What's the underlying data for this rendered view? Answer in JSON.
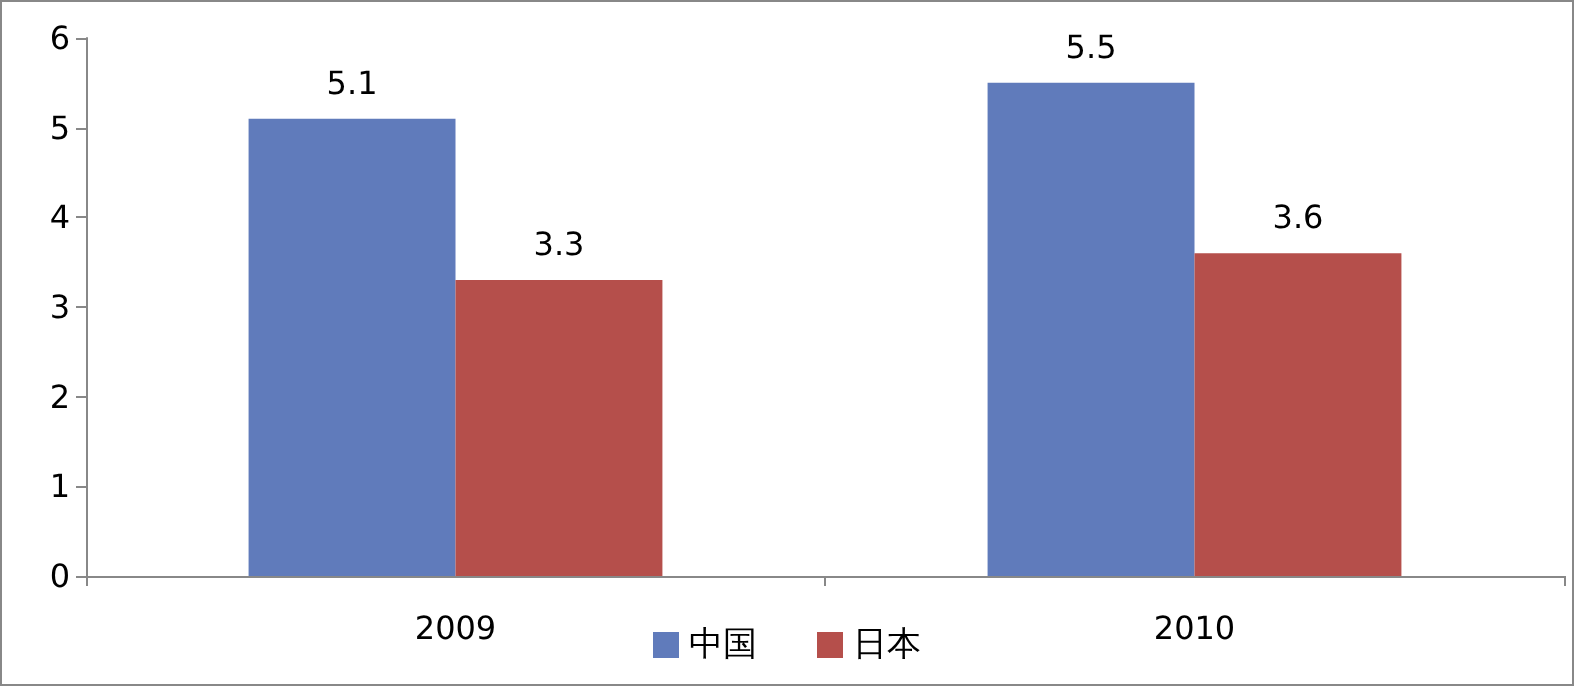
{
  "chart_data": {
    "type": "bar",
    "categories": [
      "2009",
      "2010"
    ],
    "series": [
      {
        "name": "中国",
        "color": "#607bbb",
        "values": [
          5.1,
          5.5
        ]
      },
      {
        "name": "日本",
        "color": "#b54f4b",
        "values": [
          3.3,
          3.6
        ]
      }
    ],
    "ylim": [
      0,
      6
    ],
    "yticks": [
      0,
      1,
      2,
      3,
      4,
      5,
      6
    ],
    "grid": false,
    "legend": "bottom",
    "data_labels": true
  }
}
